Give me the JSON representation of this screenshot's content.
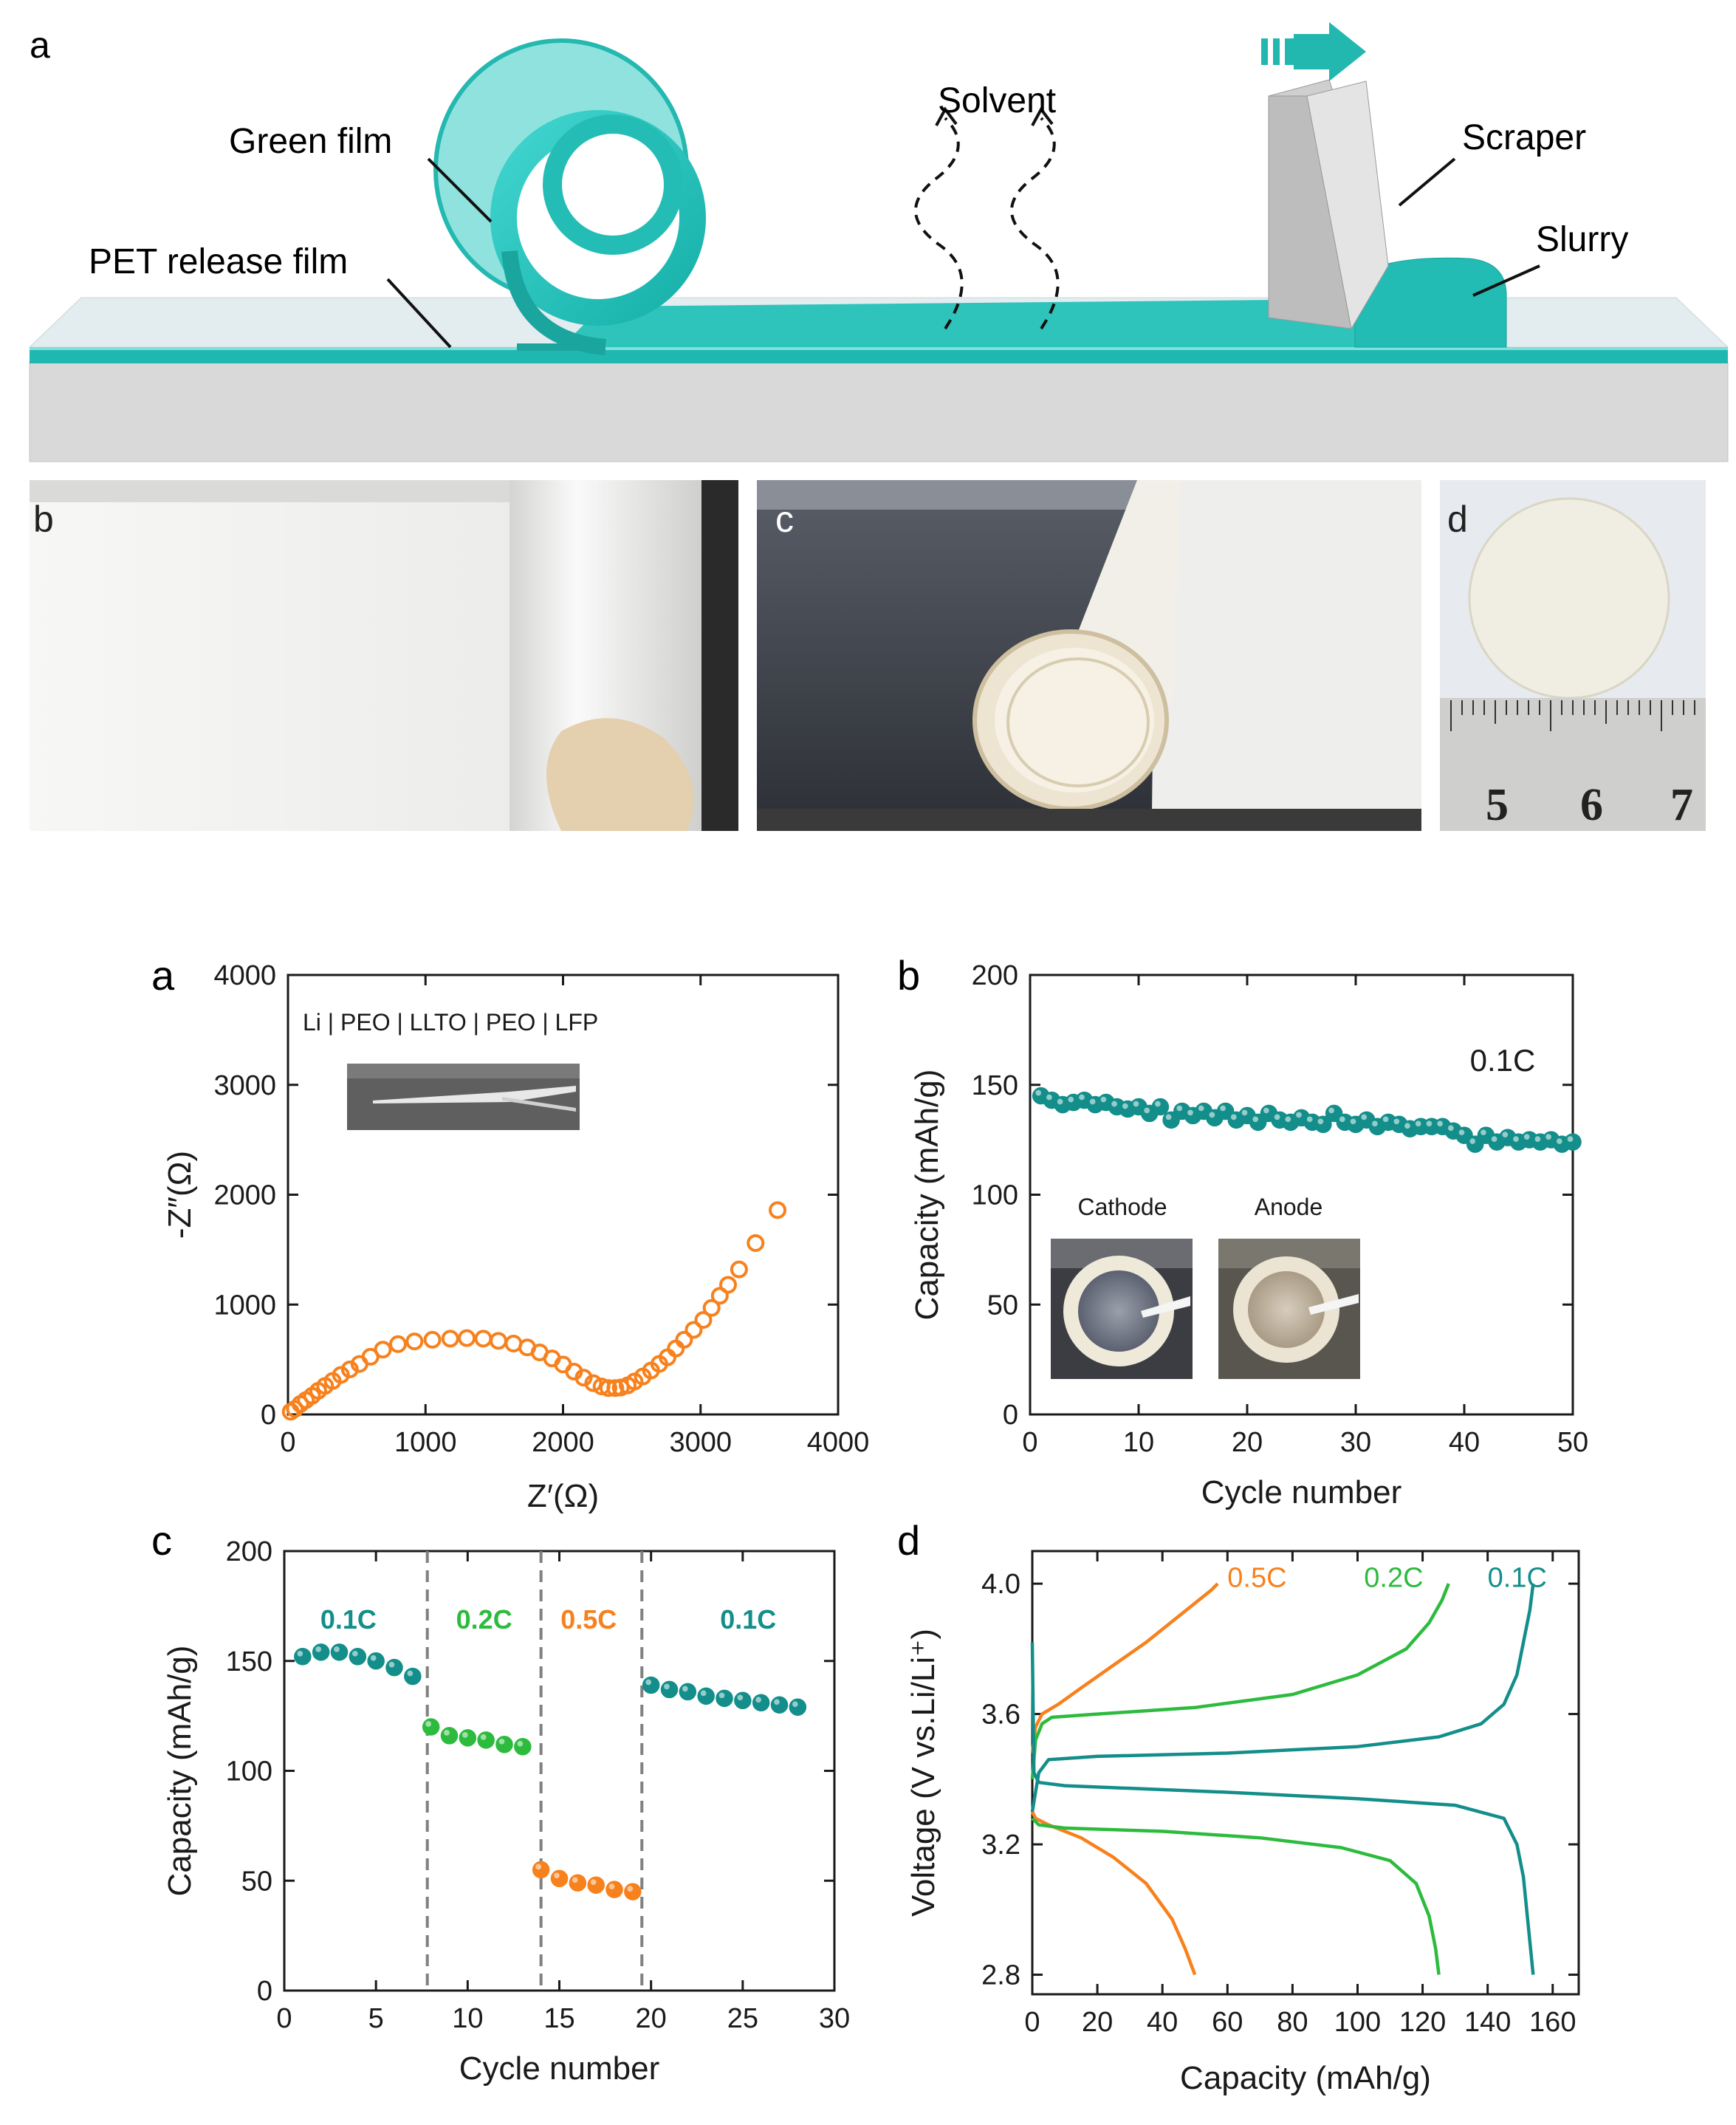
{
  "figure1": {
    "panel_labels": {
      "a": "a",
      "b": "b",
      "c": "c",
      "d": "d"
    },
    "schematic": {
      "green_film": "Green film",
      "pet_release_film": "PET release film",
      "solvent": "Solvent",
      "scraper": "Scraper",
      "slurry": "Slurry",
      "direction_arrow_icon": "arrow-right-icon"
    },
    "ruler_numbers": [
      "5",
      "6",
      "7"
    ]
  },
  "figure2": {
    "panel_labels": {
      "a": "a",
      "b": "b",
      "c": "c",
      "d": "d"
    },
    "colors": {
      "teal": "#138e8a",
      "orange": "#f7811d",
      "green": "#2dbb3e",
      "dash": "#808080"
    }
  },
  "chart_data": [
    {
      "type": "scatter",
      "panel": "a",
      "annotation": "Li | PEO | LLTO | PEO | LFP",
      "xlabel": "Z′(Ω)",
      "ylabel": "-Z″(Ω)",
      "xlim": [
        0,
        4000
      ],
      "ylim": [
        0,
        4000
      ],
      "xticks": [
        "0",
        "1000",
        "2000",
        "3000",
        "4000"
      ],
      "yticks": [
        "0",
        "1000",
        "2000",
        "3000",
        "4000"
      ],
      "color": "#f7811d",
      "points": [
        [
          20,
          25
        ],
        [
          50,
          50
        ],
        [
          90,
          95
        ],
        [
          130,
          130
        ],
        [
          175,
          170
        ],
        [
          220,
          215
        ],
        [
          270,
          260
        ],
        [
          325,
          305
        ],
        [
          385,
          360
        ],
        [
          450,
          410
        ],
        [
          520,
          460
        ],
        [
          600,
          525
        ],
        [
          690,
          590
        ],
        [
          800,
          640
        ],
        [
          920,
          665
        ],
        [
          1050,
          680
        ],
        [
          1180,
          690
        ],
        [
          1300,
          695
        ],
        [
          1420,
          690
        ],
        [
          1530,
          670
        ],
        [
          1640,
          645
        ],
        [
          1740,
          610
        ],
        [
          1830,
          565
        ],
        [
          1920,
          510
        ],
        [
          2000,
          455
        ],
        [
          2080,
          390
        ],
        [
          2150,
          335
        ],
        [
          2220,
          285
        ],
        [
          2280,
          255
        ],
        [
          2330,
          240
        ],
        [
          2380,
          240
        ],
        [
          2420,
          245
        ],
        [
          2470,
          265
        ],
        [
          2520,
          300
        ],
        [
          2580,
          345
        ],
        [
          2640,
          400
        ],
        [
          2700,
          460
        ],
        [
          2760,
          520
        ],
        [
          2820,
          600
        ],
        [
          2880,
          680
        ],
        [
          2950,
          770
        ],
        [
          3020,
          860
        ],
        [
          3080,
          970
        ],
        [
          3140,
          1080
        ],
        [
          3200,
          1180
        ],
        [
          3280,
          1320
        ],
        [
          3400,
          1560
        ],
        [
          3560,
          1860
        ]
      ]
    },
    {
      "type": "scatter",
      "panel": "b",
      "annotation": "0.1C",
      "inset_labels": [
        "Cathode",
        "Anode"
      ],
      "xlabel": "Cycle number",
      "ylabel": "Capacity (mAh/g)",
      "xlim": [
        0,
        50
      ],
      "ylim": [
        0,
        200
      ],
      "xticks": [
        "0",
        "10",
        "20",
        "30",
        "40",
        "50"
      ],
      "yticks": [
        "0",
        "50",
        "100",
        "150",
        "200"
      ],
      "color": "#138e8a",
      "x": [
        1,
        2,
        3,
        4,
        5,
        6,
        7,
        8,
        9,
        10,
        11,
        12,
        13,
        14,
        15,
        16,
        17,
        18,
        19,
        20,
        21,
        22,
        23,
        24,
        25,
        26,
        27,
        28,
        29,
        30,
        31,
        32,
        33,
        34,
        35,
        36,
        37,
        38,
        39,
        40,
        41,
        42,
        43,
        44,
        45,
        46,
        47,
        48,
        49,
        50
      ],
      "y": [
        145,
        143,
        141,
        142,
        143,
        141,
        142,
        140,
        139,
        140,
        137,
        140,
        134,
        138,
        136,
        138,
        135,
        138,
        134,
        136,
        133,
        137,
        134,
        133,
        135,
        133,
        132,
        137,
        133,
        132,
        134,
        131,
        133,
        132,
        130,
        131,
        131,
        131,
        129,
        127,
        123,
        127,
        124,
        126,
        124,
        125,
        124,
        125,
        123,
        124
      ]
    },
    {
      "type": "scatter",
      "panel": "c",
      "xlabel": "Cycle number",
      "ylabel": "Capacity (mAh/g)",
      "xlim": [
        0,
        30
      ],
      "ylim": [
        0,
        200
      ],
      "xticks": [
        "0",
        "5",
        "10",
        "15",
        "20",
        "25",
        "30"
      ],
      "yticks": [
        "0",
        "50",
        "100",
        "150",
        "200"
      ],
      "dividers": [
        7.8,
        14,
        19.5
      ],
      "segments": [
        {
          "name": "0.1C",
          "color": "#138e8a",
          "x": [
            1,
            2,
            3,
            4,
            5,
            6,
            7
          ],
          "y": [
            152,
            154,
            154,
            152,
            150,
            147,
            143
          ]
        },
        {
          "name": "0.2C",
          "color": "#2dbb3e",
          "x": [
            8,
            9,
            10,
            11,
            12,
            13
          ],
          "y": [
            120,
            116,
            115,
            114,
            112,
            111
          ]
        },
        {
          "name": "0.5C",
          "color": "#f7811d",
          "x": [
            14,
            15,
            16,
            17,
            18,
            19
          ],
          "y": [
            55,
            51,
            49,
            48,
            46,
            45
          ]
        },
        {
          "name": "0.1C",
          "color": "#138e8a",
          "x": [
            20,
            21,
            22,
            23,
            24,
            25,
            26,
            27,
            28
          ],
          "y": [
            139,
            137,
            136,
            134,
            133,
            132,
            131,
            130,
            129
          ]
        }
      ]
    },
    {
      "type": "line",
      "panel": "d",
      "xlabel": "Capacity (mAh/g)",
      "ylabel": "Voltage (V vs.Li/Li⁺)",
      "xlim": [
        0,
        168
      ],
      "ylim": [
        2.74,
        4.1
      ],
      "xticks": [
        "0",
        "20",
        "40",
        "60",
        "80",
        "100",
        "120",
        "140",
        "160"
      ],
      "yticks": [
        "2.8",
        "3.2",
        "3.6",
        "4.0"
      ],
      "series": [
        {
          "name": "0.5C",
          "color": "#f7811d",
          "charge": [
            [
              0,
              3.48
            ],
            [
              1,
              3.56
            ],
            [
              3,
              3.6
            ],
            [
              8,
              3.63
            ],
            [
              15,
              3.68
            ],
            [
              25,
              3.75
            ],
            [
              35,
              3.82
            ],
            [
              45,
              3.9
            ],
            [
              55,
              3.98
            ],
            [
              57,
              4.0
            ]
          ],
          "discharge": [
            [
              0,
              3.3
            ],
            [
              1,
              3.28
            ],
            [
              5,
              3.26
            ],
            [
              15,
              3.22
            ],
            [
              25,
              3.16
            ],
            [
              35,
              3.08
            ],
            [
              43,
              2.97
            ],
            [
              47,
              2.88
            ],
            [
              50,
              2.8
            ]
          ]
        },
        {
          "name": "0.2C",
          "color": "#2dbb3e",
          "charge": [
            [
              0,
              3.4
            ],
            [
              1,
              3.52
            ],
            [
              3,
              3.57
            ],
            [
              6,
              3.59
            ],
            [
              20,
              3.6
            ],
            [
              50,
              3.62
            ],
            [
              80,
              3.66
            ],
            [
              100,
              3.72
            ],
            [
              115,
              3.8
            ],
            [
              122,
              3.88
            ],
            [
              126,
              3.95
            ],
            [
              128,
              4.0
            ]
          ],
          "discharge": [
            [
              0,
              3.28
            ],
            [
              2,
              3.26
            ],
            [
              10,
              3.25
            ],
            [
              40,
              3.24
            ],
            [
              70,
              3.22
            ],
            [
              95,
              3.19
            ],
            [
              110,
              3.15
            ],
            [
              118,
              3.08
            ],
            [
              122,
              2.98
            ],
            [
              124,
              2.88
            ],
            [
              125,
              2.8
            ]
          ]
        },
        {
          "name": "0.1C",
          "color": "#138e8a",
          "charge": [
            [
              0,
              3.3
            ],
            [
              2,
              3.42
            ],
            [
              5,
              3.46
            ],
            [
              20,
              3.47
            ],
            [
              60,
              3.48
            ],
            [
              100,
              3.5
            ],
            [
              125,
              3.53
            ],
            [
              138,
              3.57
            ],
            [
              145,
              3.63
            ],
            [
              149,
              3.72
            ],
            [
              151,
              3.82
            ],
            [
              153,
              3.92
            ],
            [
              154,
              4.0
            ]
          ],
          "discharge": [
            [
              0,
              3.82
            ],
            [
              0.5,
              3.42
            ],
            [
              2,
              3.39
            ],
            [
              10,
              3.38
            ],
            [
              60,
              3.36
            ],
            [
              100,
              3.34
            ],
            [
              130,
              3.32
            ],
            [
              145,
              3.28
            ],
            [
              149,
              3.2
            ],
            [
              151,
              3.1
            ],
            [
              152,
              3.0
            ],
            [
              153,
              2.9
            ],
            [
              154,
              2.8
            ]
          ]
        }
      ]
    }
  ]
}
